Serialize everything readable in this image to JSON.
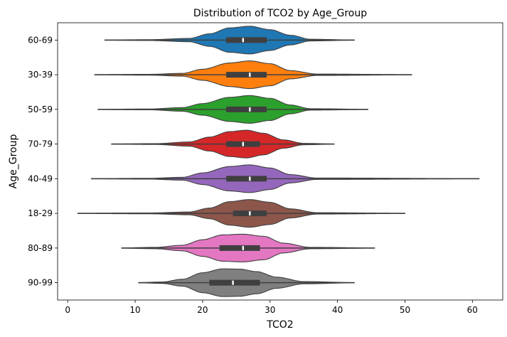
{
  "chart_data": {
    "type": "violin",
    "orientation": "horizontal",
    "title": "Distribution of TCO2 by Age_Group",
    "xlabel": "TCO2",
    "ylabel": "Age_Group",
    "xlim": [
      -1.5,
      64.5
    ],
    "xticks": [
      0,
      10,
      20,
      30,
      40,
      50,
      60
    ],
    "legend": "none",
    "grid": false,
    "series": [
      {
        "category": "60-69",
        "color": "#1f77b4",
        "min": 5.5,
        "max": 42.5,
        "q1": 23.5,
        "median": 26,
        "q3": 29.5,
        "density_x": [
          5.5,
          12,
          18,
          21,
          24,
          27,
          30,
          33,
          36,
          42.5
        ],
        "density_w": [
          0.01,
          0.03,
          0.12,
          0.45,
          0.88,
          1.0,
          0.75,
          0.35,
          0.06,
          0.01
        ]
      },
      {
        "category": "30-39",
        "color": "#ff7f0e",
        "min": 4,
        "max": 51,
        "q1": 23.5,
        "median": 27,
        "q3": 29.5,
        "density_x": [
          4,
          12,
          17,
          20,
          24,
          27,
          30,
          33,
          37,
          51
        ],
        "density_w": [
          0.01,
          0.03,
          0.1,
          0.4,
          0.85,
          1.0,
          0.8,
          0.3,
          0.05,
          0.01
        ]
      },
      {
        "category": "50-59",
        "color": "#2ca02c",
        "min": 4.5,
        "max": 44.5,
        "q1": 23.5,
        "median": 27,
        "q3": 29.5,
        "density_x": [
          4.5,
          12,
          17,
          20,
          24,
          27,
          30,
          33,
          36,
          44.5
        ],
        "density_w": [
          0.01,
          0.03,
          0.13,
          0.42,
          0.87,
          1.0,
          0.8,
          0.32,
          0.05,
          0.01
        ]
      },
      {
        "category": "70-79",
        "color": "#d62728",
        "min": 6.5,
        "max": 39.5,
        "q1": 23.5,
        "median": 26,
        "q3": 28.5,
        "density_x": [
          6.5,
          13,
          18,
          21,
          24,
          26.5,
          29,
          32,
          35,
          39.5
        ],
        "density_w": [
          0.01,
          0.03,
          0.15,
          0.5,
          0.9,
          1.0,
          0.78,
          0.3,
          0.05,
          0.01
        ]
      },
      {
        "category": "40-49",
        "color": "#9467bd",
        "min": 3.5,
        "max": 61,
        "q1": 23.5,
        "median": 27,
        "q3": 29.5,
        "density_x": [
          3.5,
          12,
          17,
          20,
          24,
          27,
          30,
          33,
          37,
          61
        ],
        "density_w": [
          0.01,
          0.03,
          0.1,
          0.42,
          0.88,
          1.0,
          0.78,
          0.3,
          0.05,
          0.01
        ]
      },
      {
        "category": "18-29",
        "color": "#8c564b",
        "min": 1.5,
        "max": 50,
        "q1": 24.5,
        "median": 27,
        "q3": 29.5,
        "density_x": [
          1.5,
          12,
          18,
          21,
          24,
          27,
          30,
          33,
          37,
          50
        ],
        "density_w": [
          0.01,
          0.03,
          0.1,
          0.38,
          0.85,
          1.0,
          0.8,
          0.33,
          0.05,
          0.01
        ]
      },
      {
        "category": "80-89",
        "color": "#e377c2",
        "min": 8,
        "max": 45.5,
        "q1": 22.5,
        "median": 26,
        "q3": 28.5,
        "density_x": [
          8,
          13,
          17,
          20,
          23,
          26,
          29,
          32,
          36,
          45.5
        ],
        "density_w": [
          0.01,
          0.05,
          0.2,
          0.6,
          0.95,
          1.0,
          0.85,
          0.35,
          0.05,
          0.01
        ]
      },
      {
        "category": "90-99",
        "color": "#7f7f7f",
        "min": 10.5,
        "max": 42.5,
        "q1": 21,
        "median": 24.5,
        "q3": 28.5,
        "density_x": [
          10.5,
          14,
          17,
          20,
          23,
          25.5,
          28,
          31,
          35,
          42.5
        ],
        "density_w": [
          0.01,
          0.05,
          0.25,
          0.72,
          1.0,
          0.98,
          0.8,
          0.4,
          0.08,
          0.01
        ]
      }
    ]
  }
}
